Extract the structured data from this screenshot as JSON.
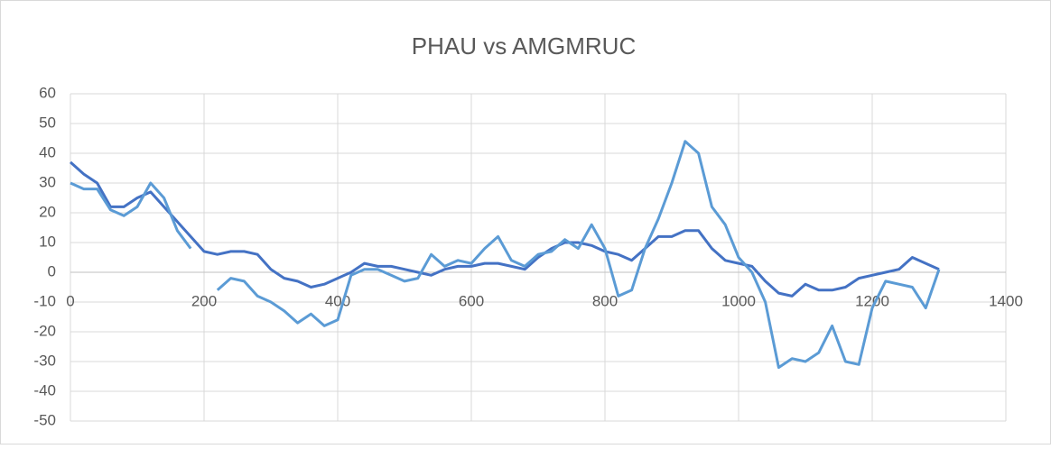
{
  "chart_data": {
    "type": "line",
    "title": "PHAU vs AMGMRUC",
    "x": [
      0,
      20,
      40,
      60,
      80,
      100,
      120,
      140,
      160,
      180,
      200,
      220,
      240,
      260,
      280,
      300,
      320,
      340,
      360,
      380,
      400,
      420,
      440,
      460,
      480,
      500,
      520,
      540,
      560,
      580,
      600,
      620,
      640,
      660,
      680,
      700,
      720,
      740,
      760,
      780,
      800,
      820,
      840,
      860,
      880,
      900,
      920,
      940,
      960,
      980,
      1000,
      1020,
      1040,
      1060,
      1080,
      1100,
      1120,
      1140,
      1160,
      1180,
      1200,
      1220,
      1240,
      1260,
      1280,
      1300
    ],
    "series": [
      {
        "color": "#4472c4",
        "values": [
          37,
          33,
          30,
          22,
          22,
          25,
          27,
          22,
          17,
          12,
          7,
          6,
          7,
          7,
          6,
          1,
          -2,
          -3,
          -5,
          -4,
          -2,
          0,
          3,
          2,
          2,
          1,
          0,
          -1,
          1,
          2,
          2,
          3,
          3,
          2,
          1,
          5,
          8,
          10,
          10,
          9,
          7,
          6,
          4,
          8,
          12,
          12,
          14,
          14,
          8,
          4,
          3,
          2,
          -3,
          -7,
          -8,
          -4,
          -6,
          -6,
          -5,
          -2,
          -1,
          0,
          1,
          5,
          3,
          1
        ]
      },
      {
        "color": "#5b9bd5",
        "values": [
          30,
          28,
          28,
          21,
          19,
          22,
          30,
          25,
          14,
          8,
          null,
          -6,
          -2,
          -3,
          -8,
          -10,
          -13,
          -17,
          -14,
          -18,
          -16,
          -1,
          1,
          1,
          -1,
          -3,
          -2,
          6,
          2,
          4,
          3,
          8,
          12,
          4,
          2,
          6,
          7,
          11,
          8,
          16,
          8,
          -8,
          -6,
          8,
          18,
          30,
          44,
          40,
          22,
          16,
          5,
          0,
          -10,
          -32,
          -29,
          -30,
          -27,
          -18,
          -30,
          -31,
          -12,
          -3,
          -4,
          -5,
          -12,
          1
        ]
      }
    ],
    "xlim": [
      0,
      1400
    ],
    "xticks": [
      0,
      200,
      400,
      600,
      800,
      1000,
      1200,
      1400
    ],
    "ylim": [
      -50,
      60
    ],
    "yticks": [
      -50,
      -40,
      -30,
      -20,
      -10,
      0,
      10,
      20,
      30,
      40,
      50,
      60
    ],
    "grid": true
  }
}
